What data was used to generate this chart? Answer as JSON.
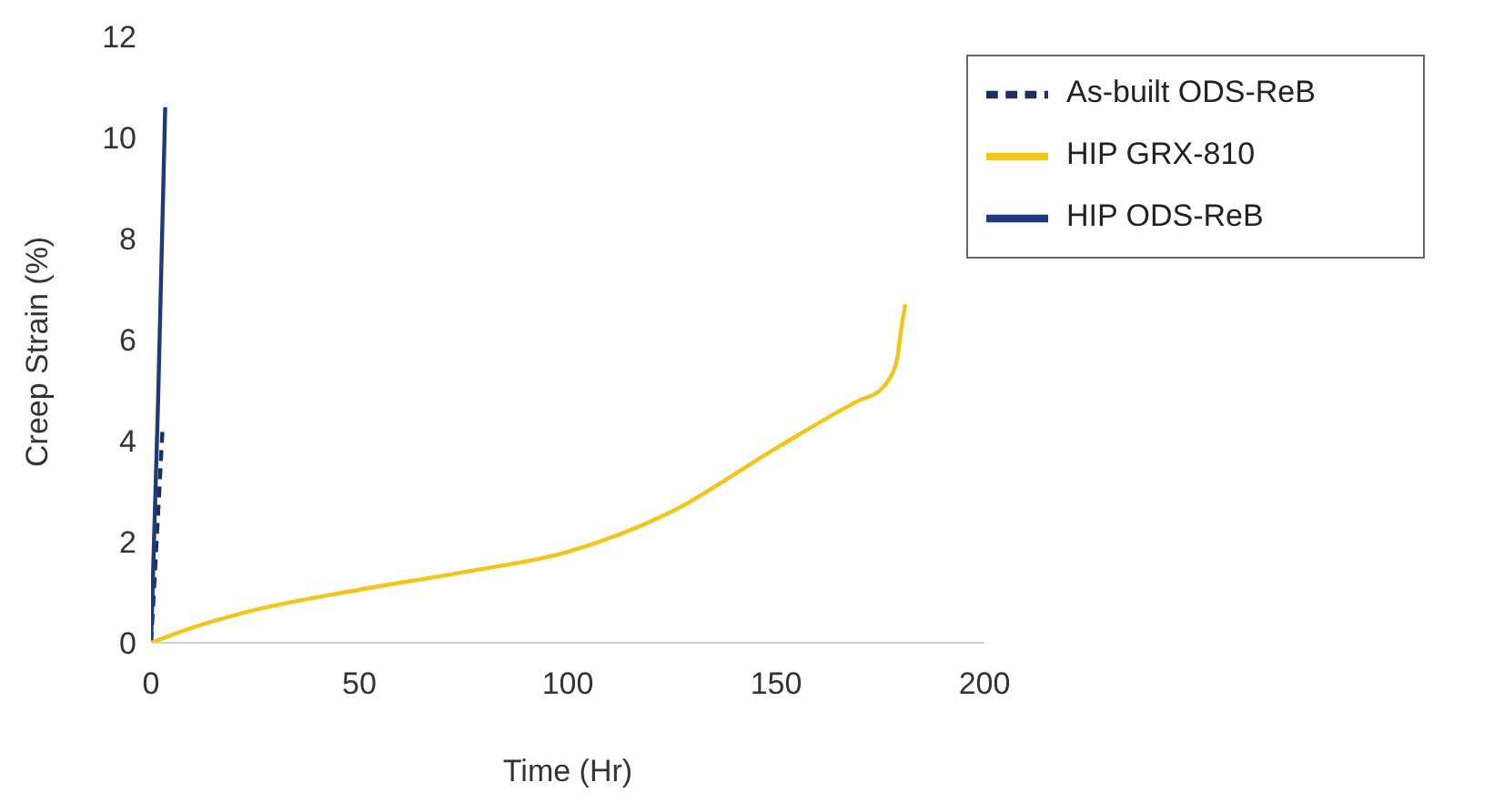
{
  "chart_data": {
    "type": "line",
    "xlabel": "Time (Hr)",
    "ylabel": "Creep Strain (%)",
    "xlim": [
      0,
      200
    ],
    "xticks": [
      0,
      50,
      100,
      150,
      200
    ],
    "ylim": [
      0,
      12
    ],
    "yticks": [
      0,
      2,
      4,
      6,
      8,
      10,
      12
    ],
    "grid": false,
    "legend": "top right",
    "marker": "none",
    "series": [
      {
        "name": "As-built ODS-ReB",
        "color": "#1f2f5c",
        "line_style": "dashed",
        "x": [
          0,
          1.4,
          2.8
        ],
        "values": [
          0,
          2.1,
          4.3
        ]
      },
      {
        "name": "HIP ODS-ReB",
        "color": "#1f3a7a",
        "line_style": "solid",
        "x": [
          0,
          1.7,
          3.4
        ],
        "values": [
          0,
          4.8,
          10.6
        ]
      },
      {
        "name": "HIP GRX-810",
        "color": "#f2c518",
        "line_style": "solid",
        "x": [
          0,
          10,
          25,
          50,
          75,
          100,
          125,
          150,
          170,
          175,
          177,
          179,
          180,
          181
        ],
        "values": [
          0,
          0.3,
          0.65,
          1.05,
          1.4,
          1.8,
          2.6,
          3.85,
          4.8,
          5.0,
          5.2,
          5.6,
          6.2,
          6.7
        ]
      }
    ]
  }
}
